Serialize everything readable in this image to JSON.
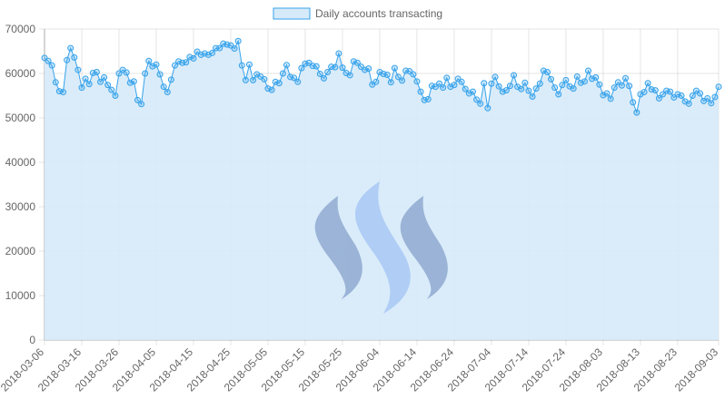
{
  "chart_data": {
    "type": "area",
    "legend": {
      "position": "top",
      "entries": [
        "Daily accounts transacting"
      ]
    },
    "xlabel": "",
    "ylabel": "",
    "ylim": [
      0,
      70000
    ],
    "yticks": [
      0,
      10000,
      20000,
      30000,
      40000,
      50000,
      60000,
      70000
    ],
    "xtick_labels": [
      "2018-03-06",
      "2018-03-16",
      "2018-03-26",
      "2018-04-05",
      "2018-04-15",
      "2018-04-25",
      "2018-05-05",
      "2018-05-15",
      "2018-05-25",
      "2018-06-04",
      "2018-06-14",
      "2018-06-24",
      "2018-07-04",
      "2018-07-14",
      "2018-07-24",
      "2018-08-03",
      "2018-08-13",
      "2018-08-23",
      "2018-09-03"
    ],
    "grid": true,
    "colors": {
      "line": "#36a2eb",
      "fill": "#d6eaf9",
      "watermark_dark": "#8faad0",
      "watermark_light": "#a8c8f5"
    },
    "watermark_icon": "steem-logo-icon",
    "series": [
      {
        "name": "Daily accounts transacting",
        "x_start": "2018-03-06",
        "x_end": "2018-09-03",
        "values": [
          63500,
          62800,
          61800,
          58000,
          56000,
          55800,
          63000,
          65700,
          63600,
          60800,
          56800,
          58800,
          57600,
          60100,
          60300,
          58100,
          59100,
          57400,
          56300,
          55000,
          60000,
          60800,
          60200,
          57900,
          58200,
          54000,
          53100,
          60000,
          62800,
          61600,
          62000,
          59800,
          57000,
          55800,
          58600,
          61800,
          62700,
          62400,
          62500,
          63700,
          63400,
          64900,
          64200,
          64500,
          64200,
          64600,
          65700,
          65700,
          66700,
          66500,
          66300,
          65600,
          67300,
          61800,
          58500,
          62000,
          58500,
          59800,
          59300,
          58700,
          56600,
          56300,
          58100,
          57800,
          60000,
          61900,
          59200,
          59000,
          58100,
          61200,
          62200,
          62400,
          61700,
          61600,
          59900,
          58900,
          60300,
          61500,
          61400,
          64500,
          61300,
          60100,
          59600,
          62700,
          62400,
          61500,
          60800,
          61100,
          57500,
          58100,
          60300,
          59900,
          59700,
          58000,
          61200,
          59200,
          58400,
          60600,
          60500,
          59800,
          58200,
          55900,
          54000,
          54200,
          57200,
          57000,
          57700,
          56800,
          59000,
          57000,
          57400,
          58800,
          58100,
          56500,
          55500,
          55900,
          54100,
          53200,
          57800,
          52200,
          57700,
          59200,
          57100,
          55900,
          56200,
          57200,
          59600,
          57000,
          56500,
          57900,
          56100,
          54800,
          56600,
          57700,
          60600,
          60300,
          58700,
          56800,
          55300,
          57400,
          58500,
          57100,
          56600,
          59300,
          57900,
          58200,
          60600,
          58800,
          59100,
          57500,
          55100,
          55500,
          54300,
          56800,
          58000,
          57300,
          58900,
          57200,
          53500,
          51200,
          55300,
          55800,
          57800,
          56400,
          56200,
          54400,
          55300,
          56100,
          55900,
          54600,
          55300,
          55000,
          53700,
          53200,
          55000,
          56100,
          55500,
          53800,
          54400,
          53300,
          54700,
          57000
        ]
      }
    ]
  }
}
